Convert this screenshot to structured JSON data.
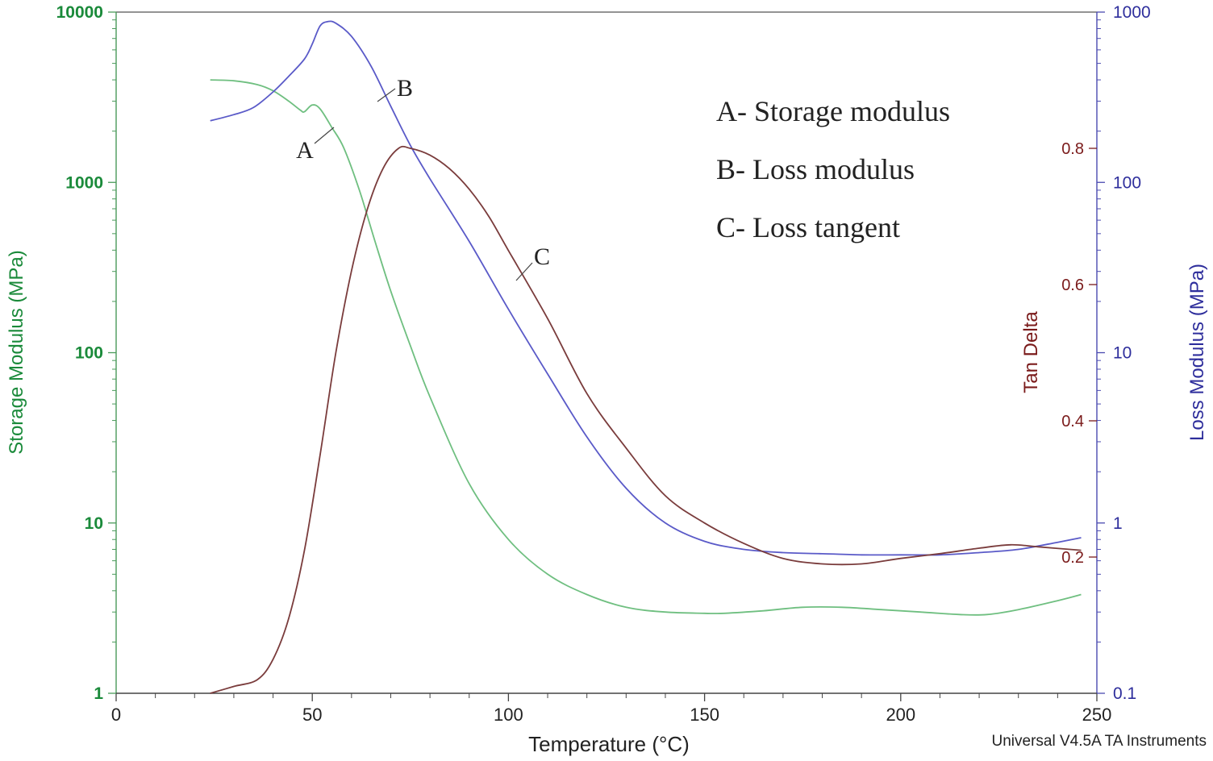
{
  "chart_data": {
    "type": "line",
    "title": "",
    "xlabel": "Temperature (°C)",
    "xlim": [
      0,
      250
    ],
    "xticks": [
      0,
      50,
      100,
      150,
      200,
      250
    ],
    "footer": "Universal V4.5A TA Instruments",
    "axes": {
      "left": {
        "label": "Storage Modulus (MPa)",
        "scale": "log",
        "lim": [
          1,
          10000
        ],
        "ticks": [
          "1",
          "10",
          "100",
          "1000",
          "10000"
        ],
        "color": "#1a8a3a"
      },
      "right_loss": {
        "label": "Loss Modulus (MPa)",
        "scale": "log",
        "lim": [
          0.1,
          1000
        ],
        "ticks": [
          "0.1",
          "1",
          "10",
          "100",
          "1000"
        ],
        "color": "#2e2e9c"
      },
      "right_tan": {
        "label": "Tan Delta",
        "scale": "linear",
        "ticks": [
          "0.2",
          "0.4",
          "0.6",
          "0.8"
        ],
        "color": "#7a1a1a"
      }
    },
    "legend": {
      "position": "top-right",
      "entries": [
        "A- Storage modulus",
        "B- Loss modulus",
        "C- Loss tangent"
      ]
    },
    "series": [
      {
        "name": "A",
        "label": "Storage modulus",
        "axis": "left",
        "color": "#6fbf80",
        "points": [
          [
            24,
            4000
          ],
          [
            30,
            3950
          ],
          [
            36,
            3750
          ],
          [
            40,
            3450
          ],
          [
            44,
            3000
          ],
          [
            47,
            2650
          ],
          [
            48,
            2600
          ],
          [
            50,
            2850
          ],
          [
            52,
            2700
          ],
          [
            55,
            2100
          ],
          [
            58,
            1600
          ],
          [
            62,
            900
          ],
          [
            66,
            450
          ],
          [
            70,
            230
          ],
          [
            75,
            110
          ],
          [
            80,
            55
          ],
          [
            90,
            17
          ],
          [
            100,
            8
          ],
          [
            110,
            5
          ],
          [
            120,
            3.8
          ],
          [
            130,
            3.2
          ],
          [
            140,
            3.0
          ],
          [
            150,
            2.95
          ],
          [
            155,
            2.95
          ],
          [
            165,
            3.05
          ],
          [
            175,
            3.2
          ],
          [
            185,
            3.2
          ],
          [
            195,
            3.1
          ],
          [
            205,
            3.0
          ],
          [
            215,
            2.9
          ],
          [
            222,
            2.9
          ],
          [
            230,
            3.1
          ],
          [
            240,
            3.5
          ],
          [
            246,
            3.8
          ]
        ]
      },
      {
        "name": "B",
        "label": "Loss modulus",
        "axis": "right_loss",
        "color": "#5a5ac8",
        "points": [
          [
            24,
            230
          ],
          [
            30,
            250
          ],
          [
            35,
            275
          ],
          [
            40,
            340
          ],
          [
            44,
            420
          ],
          [
            48,
            530
          ],
          [
            50,
            650
          ],
          [
            52,
            830
          ],
          [
            54,
            880
          ],
          [
            56,
            860
          ],
          [
            60,
            720
          ],
          [
            65,
            480
          ],
          [
            70,
            280
          ],
          [
            75,
            165
          ],
          [
            80,
            105
          ],
          [
            90,
            45
          ],
          [
            100,
            18
          ],
          [
            110,
            7.5
          ],
          [
            120,
            3.2
          ],
          [
            130,
            1.6
          ],
          [
            140,
            1.0
          ],
          [
            150,
            0.78
          ],
          [
            160,
            0.7
          ],
          [
            170,
            0.67
          ],
          [
            180,
            0.66
          ],
          [
            190,
            0.65
          ],
          [
            200,
            0.65
          ],
          [
            210,
            0.65
          ],
          [
            220,
            0.67
          ],
          [
            230,
            0.7
          ],
          [
            240,
            0.77
          ],
          [
            246,
            0.82
          ]
        ]
      },
      {
        "name": "C",
        "label": "Loss tangent",
        "axis": "right_tan",
        "color": "#7a3c3c",
        "points": [
          [
            24,
            0.0
          ],
          [
            30,
            0.01
          ],
          [
            36,
            0.02
          ],
          [
            40,
            0.05
          ],
          [
            44,
            0.11
          ],
          [
            48,
            0.21
          ],
          [
            52,
            0.35
          ],
          [
            56,
            0.5
          ],
          [
            60,
            0.62
          ],
          [
            64,
            0.71
          ],
          [
            68,
            0.77
          ],
          [
            72,
            0.8
          ],
          [
            75,
            0.8
          ],
          [
            80,
            0.79
          ],
          [
            85,
            0.77
          ],
          [
            90,
            0.74
          ],
          [
            95,
            0.7
          ],
          [
            100,
            0.65
          ],
          [
            110,
            0.55
          ],
          [
            120,
            0.44
          ],
          [
            130,
            0.36
          ],
          [
            140,
            0.29
          ],
          [
            150,
            0.25
          ],
          [
            160,
            0.22
          ],
          [
            170,
            0.198
          ],
          [
            180,
            0.19
          ],
          [
            190,
            0.19
          ],
          [
            200,
            0.198
          ],
          [
            210,
            0.205
          ],
          [
            220,
            0.213
          ],
          [
            228,
            0.218
          ],
          [
            235,
            0.215
          ],
          [
            246,
            0.21
          ]
        ]
      }
    ],
    "annotations": [
      {
        "text": "A",
        "series": "A"
      },
      {
        "text": "B",
        "series": "B"
      },
      {
        "text": "C",
        "series": "C"
      }
    ]
  }
}
